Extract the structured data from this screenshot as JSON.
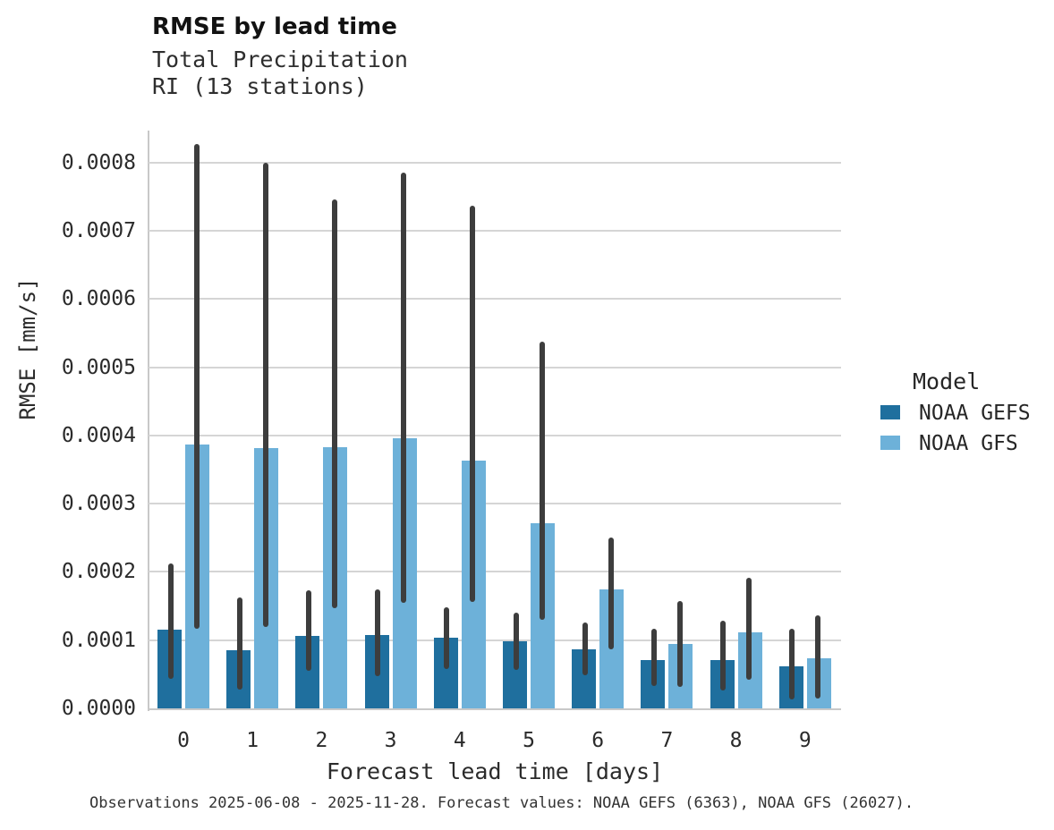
{
  "header": {
    "title": "RMSE by lead time",
    "subtitle1": "Total Precipitation",
    "subtitle2": "RI (13 stations)"
  },
  "chart_data": {
    "type": "bar",
    "title": "RMSE by lead time",
    "subtitle1": "Total Precipitation",
    "subtitle2": "RI (13 stations)",
    "xlabel": "Forecast lead time [days]",
    "ylabel": "RMSE [mm/s]",
    "categories": [
      "0",
      "1",
      "2",
      "3",
      "4",
      "5",
      "6",
      "7",
      "8",
      "9"
    ],
    "ylim": [
      0,
      0.000847
    ],
    "ytick_step": 0.0001,
    "ytick_labels": [
      "0.0000",
      "0.0001",
      "0.0002",
      "0.0003",
      "0.0004",
      "0.0005",
      "0.0006",
      "0.0007",
      "0.0008"
    ],
    "grid": true,
    "legend": {
      "title": "Model",
      "position": "right"
    },
    "error_bar_color": "#3d3d3d",
    "grid_color": "#d5d5d5",
    "series": [
      {
        "name": "NOAA GEFS",
        "color": "#1f6f9e",
        "values": [
          0.000116,
          8.5e-05,
          0.000106,
          0.000107,
          0.000103,
          9.8e-05,
          8.6e-05,
          7.1e-05,
          7.1e-05,
          6.2e-05
        ],
        "err_low": [
          4.3e-05,
          2.7e-05,
          5.5e-05,
          4.7e-05,
          5.8e-05,
          5.7e-05,
          4.9e-05,
          3.3e-05,
          2.6e-05,
          1.3e-05
        ],
        "err_high": [
          0.000212,
          0.000162,
          0.000173,
          0.000175,
          0.000148,
          0.00014,
          0.000126,
          0.000117,
          0.000129,
          0.000117
        ]
      },
      {
        "name": "NOAA GFS",
        "color": "#6db1d9",
        "values": [
          0.000387,
          0.000381,
          0.000383,
          0.000396,
          0.000363,
          0.000272,
          0.000174,
          9.4e-05,
          0.000112,
          7.3e-05
        ],
        "err_low": [
          0.000117,
          0.000119,
          0.000147,
          0.000155,
          0.000156,
          0.00013,
          8.7e-05,
          3.1e-05,
          4.2e-05,
          1.4e-05
        ],
        "err_high": [
          0.000827,
          0.0008,
          0.000746,
          0.000785,
          0.000737,
          0.000538,
          0.000251,
          0.000157,
          0.000192,
          0.000137
        ]
      }
    ]
  },
  "footer": {
    "caption": "Observations 2025-06-08 - 2025-11-28. Forecast values: NOAA GEFS (6363), NOAA GFS (26027)."
  }
}
